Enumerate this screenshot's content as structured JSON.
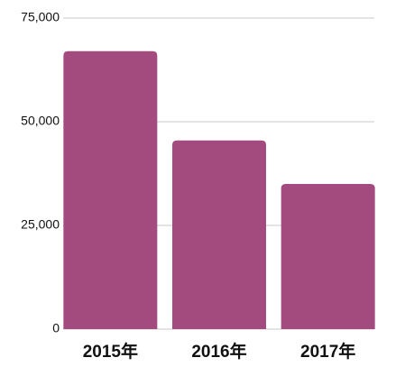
{
  "chart_data": {
    "type": "bar",
    "categories": [
      "2015年",
      "2016年",
      "2017年"
    ],
    "values": [
      67000,
      45500,
      35000
    ],
    "color": "#a34a7f",
    "ylim": [
      0,
      75000
    ],
    "yticks": [
      0,
      {
        "value": 25000,
        "label": "25,000"
      },
      {
        "value": 50000,
        "label": "50,000"
      },
      {
        "value": 75000,
        "label": "75,000"
      }
    ],
    "grid": true
  }
}
